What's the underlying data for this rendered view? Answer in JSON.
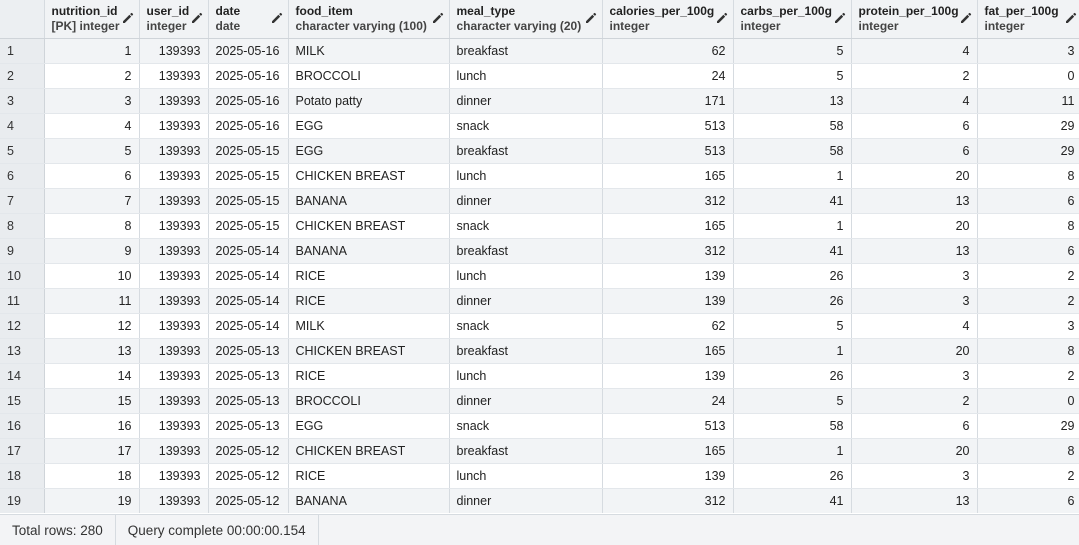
{
  "columns": [
    {
      "name": "nutrition_id",
      "type": "[PK] integer"
    },
    {
      "name": "user_id",
      "type": "integer"
    },
    {
      "name": "date",
      "type": "date"
    },
    {
      "name": "food_item",
      "type": "character varying (100)"
    },
    {
      "name": "meal_type",
      "type": "character varying (20)"
    },
    {
      "name": "calories_per_100g",
      "type": "integer"
    },
    {
      "name": "carbs_per_100g",
      "type": "integer"
    },
    {
      "name": "protein_per_100g",
      "type": "integer"
    },
    {
      "name": "fat_per_100g",
      "type": "integer"
    }
  ],
  "rows": [
    [
      "1",
      "1",
      "139393",
      "2025-05-16",
      "MILK",
      "breakfast",
      "62",
      "5",
      "4",
      "3"
    ],
    [
      "2",
      "2",
      "139393",
      "2025-05-16",
      "BROCCOLI",
      "lunch",
      "24",
      "5",
      "2",
      "0"
    ],
    [
      "3",
      "3",
      "139393",
      "2025-05-16",
      "Potato patty",
      "dinner",
      "171",
      "13",
      "4",
      "11"
    ],
    [
      "4",
      "4",
      "139393",
      "2025-05-16",
      "EGG",
      "snack",
      "513",
      "58",
      "6",
      "29"
    ],
    [
      "5",
      "5",
      "139393",
      "2025-05-15",
      "EGG",
      "breakfast",
      "513",
      "58",
      "6",
      "29"
    ],
    [
      "6",
      "6",
      "139393",
      "2025-05-15",
      "CHICKEN BREAST",
      "lunch",
      "165",
      "1",
      "20",
      "8"
    ],
    [
      "7",
      "7",
      "139393",
      "2025-05-15",
      "BANANA",
      "dinner",
      "312",
      "41",
      "13",
      "6"
    ],
    [
      "8",
      "8",
      "139393",
      "2025-05-15",
      "CHICKEN BREAST",
      "snack",
      "165",
      "1",
      "20",
      "8"
    ],
    [
      "9",
      "9",
      "139393",
      "2025-05-14",
      "BANANA",
      "breakfast",
      "312",
      "41",
      "13",
      "6"
    ],
    [
      "10",
      "10",
      "139393",
      "2025-05-14",
      "RICE",
      "lunch",
      "139",
      "26",
      "3",
      "2"
    ],
    [
      "11",
      "11",
      "139393",
      "2025-05-14",
      "RICE",
      "dinner",
      "139",
      "26",
      "3",
      "2"
    ],
    [
      "12",
      "12",
      "139393",
      "2025-05-14",
      "MILK",
      "snack",
      "62",
      "5",
      "4",
      "3"
    ],
    [
      "13",
      "13",
      "139393",
      "2025-05-13",
      "CHICKEN BREAST",
      "breakfast",
      "165",
      "1",
      "20",
      "8"
    ],
    [
      "14",
      "14",
      "139393",
      "2025-05-13",
      "RICE",
      "lunch",
      "139",
      "26",
      "3",
      "2"
    ],
    [
      "15",
      "15",
      "139393",
      "2025-05-13",
      "BROCCOLI",
      "dinner",
      "24",
      "5",
      "2",
      "0"
    ],
    [
      "16",
      "16",
      "139393",
      "2025-05-13",
      "EGG",
      "snack",
      "513",
      "58",
      "6",
      "29"
    ],
    [
      "17",
      "17",
      "139393",
      "2025-05-12",
      "CHICKEN BREAST",
      "breakfast",
      "165",
      "1",
      "20",
      "8"
    ],
    [
      "18",
      "18",
      "139393",
      "2025-05-12",
      "RICE",
      "lunch",
      "139",
      "26",
      "3",
      "2"
    ],
    [
      "19",
      "19",
      "139393",
      "2025-05-12",
      "BANANA",
      "dinner",
      "312",
      "41",
      "13",
      "6"
    ]
  ],
  "status": {
    "total_rows": "Total rows: 280",
    "query": "Query complete 00:00:00.154"
  }
}
